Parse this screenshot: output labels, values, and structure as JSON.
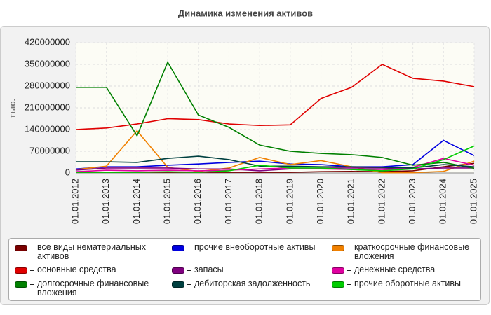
{
  "chart_data": {
    "type": "line",
    "title": "Динамика изменения активов",
    "y_label": "тыс.",
    "categories": [
      "01.01.2012",
      "01.01.2013",
      "01.01.2014",
      "01.01.2015",
      "01.01.2016",
      "01.01.2017",
      "01.01.2018",
      "01.01.2019",
      "01.01.2020",
      "01.01.2021",
      "01.01.2022",
      "01.01.2023",
      "01.01.2024",
      "01.01.2025"
    ],
    "ylim": [
      0,
      420000000
    ],
    "yticks": [
      0,
      70000000,
      140000000,
      210000000,
      280000000,
      350000000,
      420000000
    ],
    "grid": true,
    "series": [
      {
        "name": "все виды нематериальных активов",
        "color": "#7a0000",
        "values": [
          2000000,
          2000000,
          2000000,
          2000000,
          2000000,
          2000000,
          2000000,
          2000000,
          4000000,
          5000000,
          4000000,
          7000000,
          20000000,
          31000000
        ]
      },
      {
        "name": "прочие внеоборотные активы",
        "color": "#0000e0",
        "values": [
          13000000,
          20000000,
          20000000,
          25000000,
          29000000,
          34000000,
          38000000,
          29000000,
          27000000,
          20000000,
          20000000,
          27000000,
          105000000,
          56000000
        ]
      },
      {
        "name": "краткосрочные финансовые вложения",
        "color": "#f08000",
        "values": [
          11000000,
          22000000,
          136000000,
          18000000,
          5000000,
          16000000,
          50000000,
          27000000,
          40000000,
          20000000,
          1000000,
          1000000,
          5000000,
          38000000
        ]
      },
      {
        "name": "основные средства",
        "color": "#e00000",
        "values": [
          140000000,
          145000000,
          158000000,
          175000000,
          172000000,
          158000000,
          153000000,
          155000000,
          240000000,
          276000000,
          350000000,
          305000000,
          296000000,
          278000000
        ]
      },
      {
        "name": "запасы",
        "color": "#800080",
        "values": [
          9000000,
          16000000,
          16000000,
          16000000,
          13000000,
          13000000,
          7000000,
          13000000,
          16000000,
          16000000,
          16000000,
          13000000,
          16000000,
          16000000
        ]
      },
      {
        "name": "денежные средства",
        "color": "#e000a0",
        "values": [
          4000000,
          9000000,
          7000000,
          9000000,
          7000000,
          9000000,
          13000000,
          16000000,
          13000000,
          11000000,
          9000000,
          18000000,
          47000000,
          25000000
        ]
      },
      {
        "name": "долгосрочные финансовые вложения",
        "color": "#008000",
        "values": [
          276000000,
          276000000,
          120000000,
          357000000,
          187000000,
          147000000,
          90000000,
          70000000,
          63000000,
          59000000,
          50000000,
          25000000,
          34000000,
          15000000
        ]
      },
      {
        "name": "дебиторская задолженность",
        "color": "#004040",
        "values": [
          36000000,
          36000000,
          34000000,
          47000000,
          54000000,
          43000000,
          22000000,
          22000000,
          20000000,
          20000000,
          18000000,
          16000000,
          27000000,
          20000000
        ]
      },
      {
        "name": "прочие оборотные активы",
        "color": "#00cc00",
        "values": [
          2000000,
          2000000,
          2000000,
          4000000,
          2000000,
          7000000,
          25000000,
          16000000,
          16000000,
          11000000,
          7000000,
          13000000,
          43000000,
          87000000
        ]
      }
    ]
  }
}
